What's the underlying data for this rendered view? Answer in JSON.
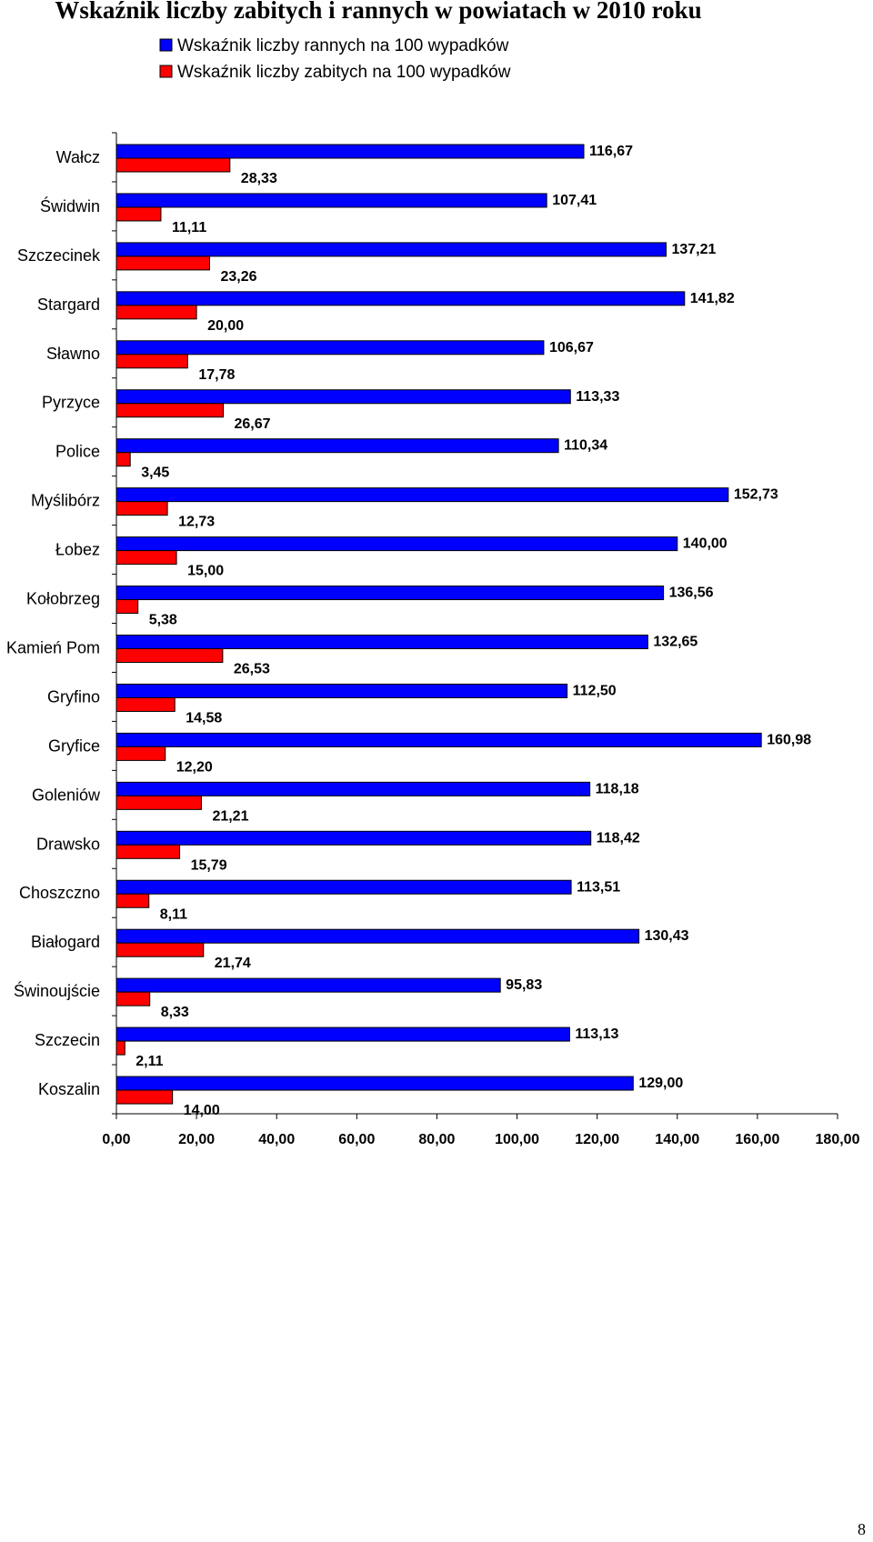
{
  "page": {
    "number": "8"
  },
  "chart_data": {
    "type": "bar",
    "orientation": "horizontal",
    "title": "Wskaźnik liczby zabitych i rannych w powiatach w 2010 roku",
    "categories": [
      "Wałcz",
      "Świdwin",
      "Szczecinek",
      "Stargard",
      "Sławno",
      "Pyrzyce",
      "Police",
      "Myślibórz",
      "Łobez",
      "Kołobrzeg",
      "Kamień Pom",
      "Gryfino",
      "Gryfice",
      "Goleniów",
      "Drawsko",
      "Choszczno",
      "Białogard",
      "Świnoujście",
      "Szczecin",
      "Koszalin"
    ],
    "series": [
      {
        "name": "Wskaźnik liczby rannych na 100 wypadków",
        "color": "#0000ff",
        "values": [
          116.67,
          107.41,
          137.21,
          141.82,
          106.67,
          113.33,
          110.34,
          152.73,
          140.0,
          136.56,
          132.65,
          112.5,
          160.98,
          118.18,
          118.42,
          113.51,
          130.43,
          95.83,
          113.13,
          129.0
        ],
        "labels": [
          "116,67",
          "107,41",
          "137,21",
          "141,82",
          "106,67",
          "113,33",
          "110,34",
          "152,73",
          "140,00",
          "136,56",
          "132,65",
          "112,50",
          "160,98",
          "118,18",
          "118,42",
          "113,51",
          "130,43",
          "95,83",
          "113,13",
          "129,00"
        ]
      },
      {
        "name": "Wskaźnik liczby zabitych na 100 wypadków",
        "color": "#ff0000",
        "values": [
          28.33,
          11.11,
          23.26,
          20.0,
          17.78,
          26.67,
          3.45,
          12.73,
          15.0,
          5.38,
          26.53,
          14.58,
          12.2,
          21.21,
          15.79,
          8.11,
          21.74,
          8.33,
          2.11,
          14.0
        ],
        "labels": [
          "28,33",
          "11,11",
          "23,26",
          "20,00",
          "17,78",
          "26,67",
          "3,45",
          "12,73",
          "15,00",
          "5,38",
          "26,53",
          "14,58",
          "12,20",
          "21,21",
          "15,79",
          "8,11",
          "21,74",
          "8,33",
          "2,11",
          "14,00"
        ]
      }
    ],
    "xlim": [
      0,
      180
    ],
    "xticks": [
      0,
      20,
      40,
      60,
      80,
      100,
      120,
      140,
      160,
      180
    ],
    "xtick_labels": [
      "0,00",
      "20,00",
      "40,00",
      "60,00",
      "80,00",
      "100,00",
      "120,00",
      "140,00",
      "160,00",
      "180,00"
    ],
    "legend_position": "top",
    "grid": false
  }
}
